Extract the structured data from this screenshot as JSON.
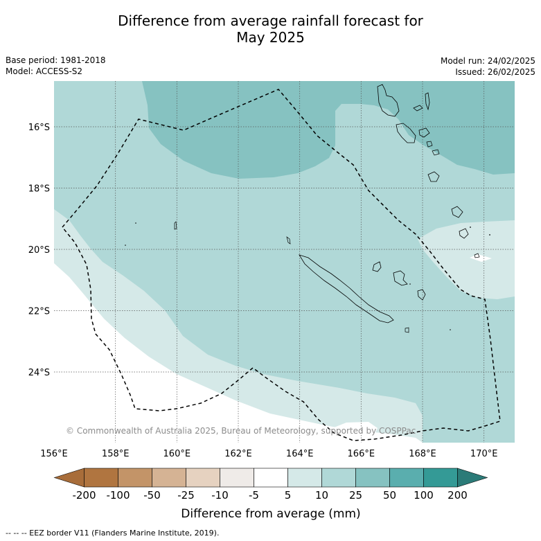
{
  "title_line1": "Difference from average rainfall forecast for",
  "title_line2": "May 2025",
  "meta_left": {
    "base_period": "Base period: 1981-2018",
    "model": "Model: ACCESS-S2"
  },
  "meta_right": {
    "model_run": "Model run: 24/02/2025",
    "issued": "Issued: 26/02/2025"
  },
  "lat_labels": [
    "16°S",
    "18°S",
    "20°S",
    "22°S",
    "24°S"
  ],
  "lon_labels": [
    "156°E",
    "158°E",
    "160°E",
    "162°E",
    "164°E",
    "166°E",
    "168°E",
    "170°E"
  ],
  "copyright": "© Commonwealth of Australia 2025, Bureau of Meteorology, supported by COSPPac",
  "colorbar": {
    "title": "Difference from average (mm)",
    "tick_labels": [
      "-200",
      "-100",
      "-50",
      "-25",
      "-10",
      "-5",
      "5",
      "10",
      "25",
      "50",
      "100",
      "200"
    ],
    "colors": [
      "#a86d3a",
      "#b07540",
      "#c39468",
      "#d5b394",
      "#e6d2c0",
      "#efebe8",
      "#ffffff",
      "#d5e9e8",
      "#b0d8d7",
      "#86c2c1",
      "#5aaeae",
      "#349a96",
      "#2b7b78"
    ]
  },
  "legend_footer": "-- -- -- EEZ border V11 (Flanders Marine Institute, 2019).",
  "colors": {
    "zone_25_50": "#86c2c1",
    "zone_10_25": "#b0d8d7",
    "zone_5_10": "#d5e9e8",
    "zone_neutral": "#ffffff"
  }
}
